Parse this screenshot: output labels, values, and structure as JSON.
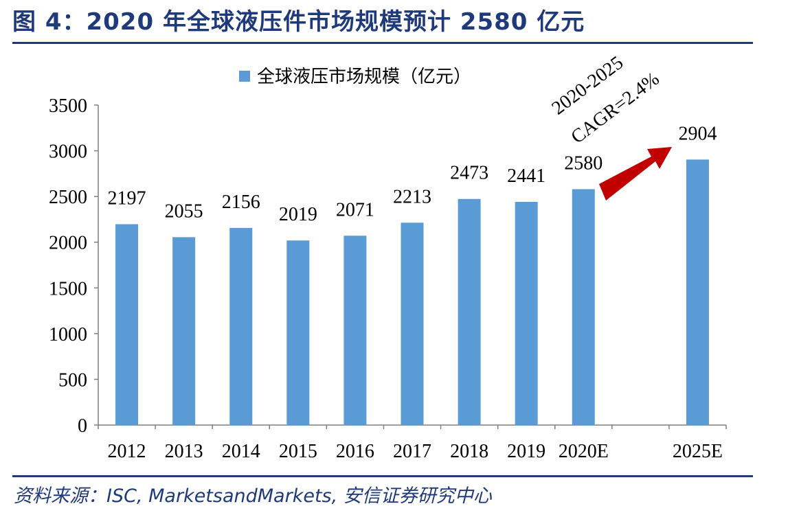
{
  "figure": {
    "title": "图 4：2020 年全球液压件市场规模预计 2580 亿元",
    "source": "资料来源：ISC, MarketsandMarkets, 安信证券研究中心"
  },
  "chart_data": {
    "type": "bar",
    "categories": [
      "2012",
      "2013",
      "2014",
      "2015",
      "2016",
      "2017",
      "2018",
      "2019",
      "2020E",
      "",
      "2025E"
    ],
    "series": [
      {
        "name": "全球液压市场规模（亿元）",
        "values": [
          2197,
          2055,
          2156,
          2019,
          2071,
          2213,
          2473,
          2441,
          2580,
          null,
          2904
        ],
        "color": "#5b9bd5"
      }
    ],
    "data_labels": [
      "2197",
      "2055",
      "2156",
      "2019",
      "2071",
      "2213",
      "2473",
      "2441",
      "2580",
      "",
      "2904"
    ],
    "ylim": [
      0,
      3500
    ],
    "yticks": [
      0,
      500,
      1000,
      1500,
      2000,
      2500,
      3000,
      3500
    ],
    "ytick_labels": [
      "0",
      "500",
      "1000",
      "1500",
      "2000",
      "2500",
      "3000",
      "3500"
    ],
    "legend_position": "top-center",
    "grid": false,
    "annotation": {
      "lines": [
        "2020-2025",
        "CAGR=2.4%"
      ],
      "arrow_color": "#c00000",
      "arrow_from": "2020E",
      "arrow_to": "2025E"
    }
  }
}
